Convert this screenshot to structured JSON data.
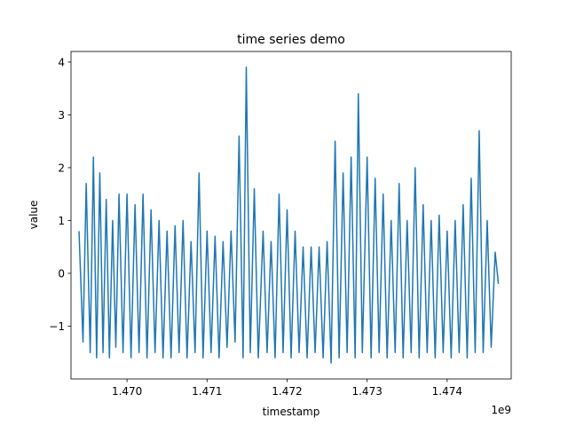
{
  "chart_data": {
    "type": "line",
    "title": "time series demo",
    "xlabel": "timestamp",
    "ylabel": "value",
    "x_offset_label": "1e9",
    "xlim": [
      1469300000,
      1474800000
    ],
    "ylim": [
      -2.0,
      4.2
    ],
    "x_ticks": [
      1470000000,
      1471000000,
      1472000000,
      1473000000,
      1474000000
    ],
    "x_tick_labels": [
      "1.470",
      "1.471",
      "1.472",
      "1.473",
      "1.474"
    ],
    "y_ticks": [
      -1,
      0,
      1,
      2,
      3,
      4
    ],
    "y_tick_labels": [
      "−1",
      "0",
      "1",
      "2",
      "3",
      "4"
    ],
    "grid": false,
    "legend": "none",
    "series": [
      {
        "color": "#1f77b4",
        "points": [
          [
            1469400000,
            0.8
          ],
          [
            1469450000,
            -1.3
          ],
          [
            1469490000,
            1.7
          ],
          [
            1469540000,
            -1.5
          ],
          [
            1469580000,
            2.2
          ],
          [
            1469620000,
            -1.6
          ],
          [
            1469660000,
            1.9
          ],
          [
            1469700000,
            -1.5
          ],
          [
            1469740000,
            1.4
          ],
          [
            1469780000,
            -1.6
          ],
          [
            1469820000,
            1.0
          ],
          [
            1469860000,
            -1.4
          ],
          [
            1469900000,
            1.5
          ],
          [
            1469950000,
            -1.5
          ],
          [
            1470000000,
            1.5
          ],
          [
            1470050000,
            -1.6
          ],
          [
            1470100000,
            1.3
          ],
          [
            1470150000,
            -1.5
          ],
          [
            1470200000,
            1.5
          ],
          [
            1470250000,
            -1.6
          ],
          [
            1470300000,
            1.2
          ],
          [
            1470350000,
            -1.5
          ],
          [
            1470400000,
            1.0
          ],
          [
            1470450000,
            -1.6
          ],
          [
            1470500000,
            0.8
          ],
          [
            1470550000,
            -1.6
          ],
          [
            1470600000,
            0.9
          ],
          [
            1470650000,
            -1.5
          ],
          [
            1470700000,
            1.0
          ],
          [
            1470750000,
            -1.6
          ],
          [
            1470800000,
            0.6
          ],
          [
            1470850000,
            -1.5
          ],
          [
            1470900000,
            1.9
          ],
          [
            1470950000,
            -1.6
          ],
          [
            1471000000,
            0.8
          ],
          [
            1471050000,
            -1.5
          ],
          [
            1471100000,
            0.7
          ],
          [
            1471150000,
            -1.6
          ],
          [
            1471200000,
            0.6
          ],
          [
            1471250000,
            -1.4
          ],
          [
            1471300000,
            0.8
          ],
          [
            1471350000,
            -1.3
          ],
          [
            1471400000,
            2.6
          ],
          [
            1471450000,
            -1.6
          ],
          [
            1471490000,
            3.9
          ],
          [
            1471540000,
            -1.5
          ],
          [
            1471590000,
            1.6
          ],
          [
            1471640000,
            -1.6
          ],
          [
            1471700000,
            0.8
          ],
          [
            1471750000,
            -1.5
          ],
          [
            1471800000,
            0.6
          ],
          [
            1471850000,
            -1.6
          ],
          [
            1471900000,
            1.5
          ],
          [
            1471950000,
            -1.5
          ],
          [
            1472000000,
            1.2
          ],
          [
            1472050000,
            -1.6
          ],
          [
            1472100000,
            0.8
          ],
          [
            1472150000,
            -1.5
          ],
          [
            1472200000,
            0.5
          ],
          [
            1472250000,
            -1.6
          ],
          [
            1472300000,
            0.5
          ],
          [
            1472350000,
            -1.5
          ],
          [
            1472400000,
            0.5
          ],
          [
            1472450000,
            -1.6
          ],
          [
            1472500000,
            0.6
          ],
          [
            1472550000,
            -1.7
          ],
          [
            1472600000,
            2.5
          ],
          [
            1472650000,
            -1.6
          ],
          [
            1472700000,
            1.9
          ],
          [
            1472750000,
            -1.5
          ],
          [
            1472800000,
            2.2
          ],
          [
            1472850000,
            -1.6
          ],
          [
            1472890000,
            3.4
          ],
          [
            1472940000,
            -1.5
          ],
          [
            1473000000,
            2.2
          ],
          [
            1473050000,
            -1.6
          ],
          [
            1473100000,
            1.8
          ],
          [
            1473150000,
            -1.5
          ],
          [
            1473200000,
            1.5
          ],
          [
            1473250000,
            -1.6
          ],
          [
            1473300000,
            1.0
          ],
          [
            1473350000,
            -1.5
          ],
          [
            1473400000,
            1.7
          ],
          [
            1473450000,
            -1.6
          ],
          [
            1473500000,
            1.0
          ],
          [
            1473550000,
            -1.5
          ],
          [
            1473600000,
            2.0
          ],
          [
            1473650000,
            -1.6
          ],
          [
            1473700000,
            1.3
          ],
          [
            1473750000,
            -1.5
          ],
          [
            1473800000,
            1.0
          ],
          [
            1473850000,
            -1.6
          ],
          [
            1473900000,
            1.1
          ],
          [
            1473950000,
            -1.5
          ],
          [
            1474000000,
            0.8
          ],
          [
            1474050000,
            -1.6
          ],
          [
            1474100000,
            1.0
          ],
          [
            1474150000,
            -1.5
          ],
          [
            1474200000,
            1.3
          ],
          [
            1474250000,
            -1.6
          ],
          [
            1474300000,
            1.8
          ],
          [
            1474350000,
            -1.5
          ],
          [
            1474400000,
            2.7
          ],
          [
            1474450000,
            -1.5
          ],
          [
            1474500000,
            1.0
          ],
          [
            1474550000,
            -1.4
          ],
          [
            1474600000,
            0.4
          ],
          [
            1474640000,
            -0.2
          ]
        ]
      }
    ]
  }
}
